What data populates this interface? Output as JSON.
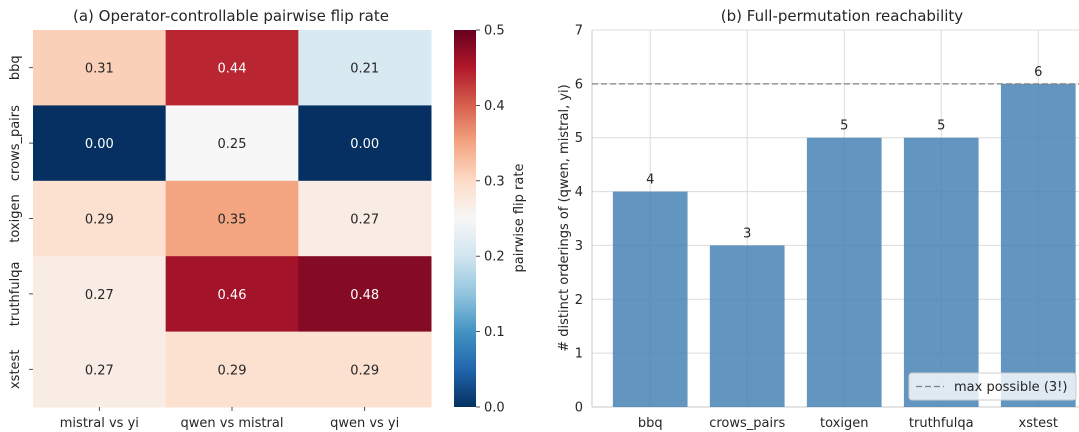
{
  "chart_data": [
    {
      "type": "heatmap",
      "title": "(a) Operator-controllable pairwise flip rate",
      "columns": [
        "mistral vs yi",
        "qwen vs mistral",
        "qwen vs yi"
      ],
      "rows": [
        "bbq",
        "crows_pairs",
        "toxigen",
        "truthfulqa",
        "xstest"
      ],
      "values": [
        [
          0.31,
          0.44,
          0.21
        ],
        [
          0.0,
          0.25,
          0.0
        ],
        [
          0.29,
          0.35,
          0.27
        ],
        [
          0.27,
          0.46,
          0.48
        ],
        [
          0.27,
          0.29,
          0.29
        ]
      ],
      "value_labels": [
        [
          "0.31",
          "0.44",
          "0.21"
        ],
        [
          "0.00",
          "0.25",
          "0.00"
        ],
        [
          "0.29",
          "0.35",
          "0.27"
        ],
        [
          "0.27",
          "0.46",
          "0.48"
        ],
        [
          "0.27",
          "0.29",
          "0.29"
        ]
      ],
      "colorbar": {
        "label": "pairwise flip rate",
        "range": [
          0,
          0.5
        ],
        "ticks": [
          "0.0",
          "0.1",
          "0.2",
          "0.3",
          "0.4",
          "0.5"
        ],
        "colormap": "RdBu_r"
      }
    },
    {
      "type": "bar",
      "title": "(b) Full-permutation reachability",
      "categories": [
        "bbq",
        "crows_pairs",
        "toxigen",
        "truthfulqa",
        "xstest"
      ],
      "values": [
        4,
        3,
        5,
        5,
        6
      ],
      "value_labels": [
        "4",
        "3",
        "5",
        "5",
        "6"
      ],
      "ylabel": "# distinct orderings of (qwen, mistral, yi)",
      "ylim": [
        0,
        7
      ],
      "yticks": [
        "0",
        "1",
        "2",
        "3",
        "4",
        "5",
        "6",
        "7"
      ],
      "bar_color": "#4682b4",
      "grid": true,
      "reference_line": {
        "value": 6,
        "label": "max possible (3!)",
        "style": "dashed",
        "color": "#808080"
      },
      "legend_position": "lower-right"
    }
  ]
}
